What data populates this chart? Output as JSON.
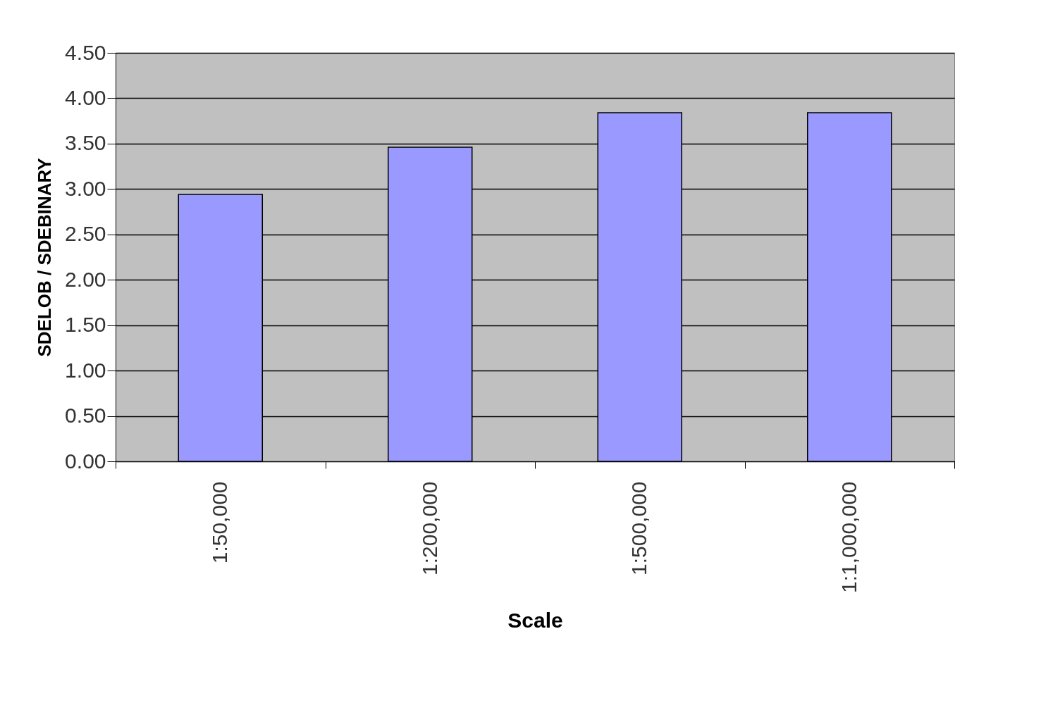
{
  "chart_data": {
    "type": "bar",
    "xlabel": "Scale",
    "ylabel": "SDELOB / SDEBINARY",
    "categories": [
      "1:50,000",
      "1:200,000",
      "1:500,000",
      "1:1,000,000"
    ],
    "values": [
      2.94,
      3.46,
      3.84,
      3.84
    ],
    "color": "#9999ff",
    "ylim": [
      0,
      4.5
    ],
    "yticks": [
      {
        "value": 0,
        "label": "0.00"
      },
      {
        "value": 0.5,
        "label": "0.50"
      },
      {
        "value": 1,
        "label": "1.00"
      },
      {
        "value": 1.5,
        "label": "1.50"
      },
      {
        "value": 2,
        "label": "2.00"
      },
      {
        "value": 2.5,
        "label": "2.50"
      },
      {
        "value": 3,
        "label": "3.00"
      },
      {
        "value": 3.5,
        "label": "3.50"
      },
      {
        "value": 4,
        "label": "4.00"
      },
      {
        "value": 4.5,
        "label": "4.50"
      }
    ],
    "grid": "y"
  }
}
